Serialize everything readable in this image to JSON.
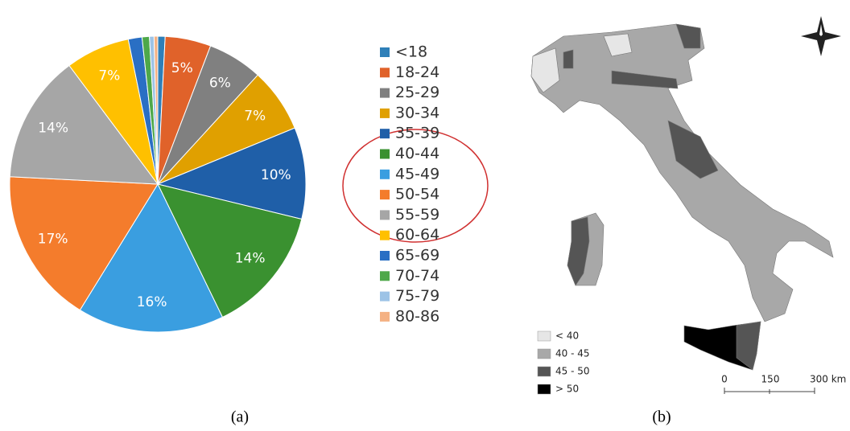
{
  "chart_data": {
    "type": "pie",
    "categories": [
      "<18",
      "18-24",
      "25-29",
      "30-34",
      "35-39",
      "40-44",
      "45-49",
      "50-54",
      "55-59",
      "60-64",
      "65-69",
      "70-74",
      "75-79",
      "80-86"
    ],
    "values": [
      0.8,
      5,
      6,
      7,
      10,
      14,
      16,
      17,
      14,
      7,
      1.5,
      0.8,
      0.5,
      0.4
    ],
    "value_labels": [
      null,
      "5%",
      "6%",
      "7%",
      "10%",
      "14%",
      "16%",
      "17%",
      "14%",
      "7%",
      null,
      null,
      null,
      null
    ],
    "colors": [
      "#2e7fb8",
      "#e0622a",
      "#808080",
      "#e0a000",
      "#1f5fa8",
      "#3a9130",
      "#3a9ee0",
      "#f47c2c",
      "#a6a6a6",
      "#ffc000",
      "#2a6fc4",
      "#4ea84a",
      "#9dc3e6",
      "#f4b183"
    ],
    "caption": "(a)"
  },
  "map": {
    "legend": [
      {
        "label": "< 40",
        "color": "#e6e6e6"
      },
      {
        "label": "40 - 45",
        "color": "#a8a8a8"
      },
      {
        "label": "45 - 50",
        "color": "#555555"
      },
      {
        "label": "> 50",
        "color": "#000000"
      }
    ],
    "scale_labels": [
      "0",
      "150",
      "300 km"
    ],
    "caption": "(b)"
  }
}
